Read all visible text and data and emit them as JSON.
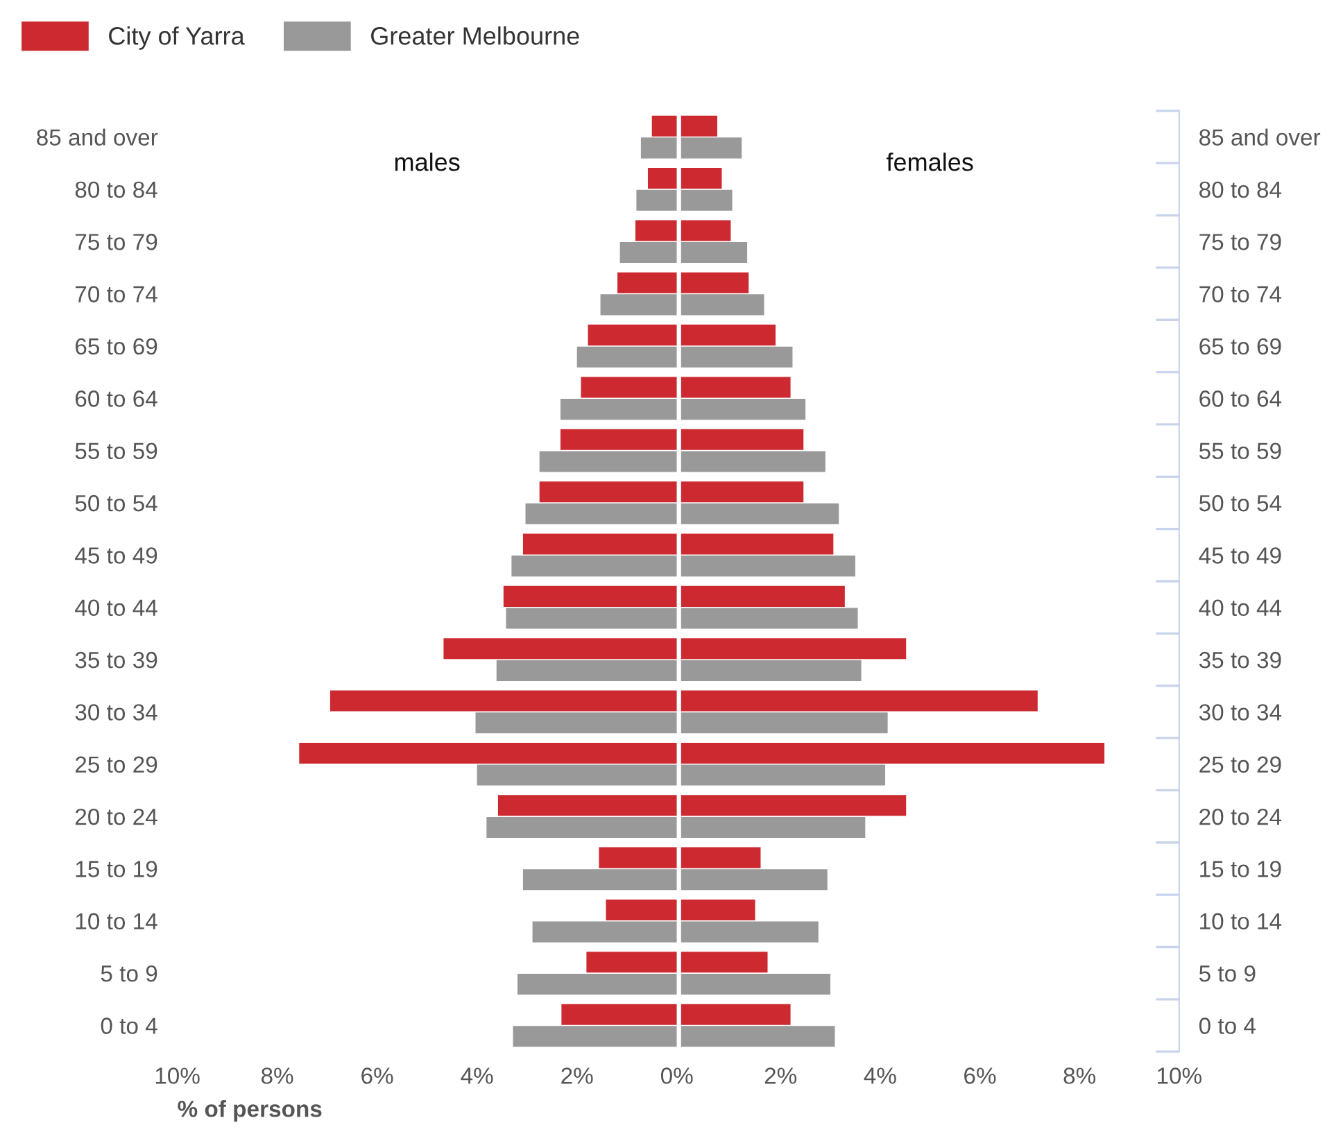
{
  "chart_data": [
    {
      "type": "bar",
      "orientation": "horizontal",
      "title": "males",
      "xlabel": "% of persons",
      "legend": "top left",
      "categories": [
        "85 and over",
        "80 to 84",
        "75 to 79",
        "70 to 74",
        "65 to 69",
        "60 to 64",
        "55 to 59",
        "50 to 54",
        "45 to 49",
        "40 to 44",
        "35 to 39",
        "30 to 34",
        "25 to 29",
        "20 to 24",
        "15 to 19",
        "10 to 14",
        "5 to 9",
        "0 to 4"
      ],
      "series": [
        {
          "name": "City of Yarra",
          "color": "#cc2a30",
          "values": [
            0.5,
            0.58,
            0.83,
            1.19,
            1.78,
            1.92,
            2.33,
            2.75,
            3.08,
            3.47,
            4.67,
            6.94,
            7.56,
            3.58,
            1.56,
            1.42,
            1.81,
            2.31
          ]
        },
        {
          "name": "Greater Melbourne",
          "color": "#999999",
          "values": [
            0.72,
            0.81,
            1.14,
            1.53,
            2.0,
            2.33,
            2.75,
            3.03,
            3.31,
            3.42,
            3.61,
            4.03,
            4.0,
            3.81,
            3.08,
            2.89,
            3.19,
            3.28
          ]
        }
      ],
      "xlim": [
        10,
        0
      ],
      "xticks": [
        {
          "value": 10,
          "label": "10%"
        },
        {
          "value": 8,
          "label": "8%"
        },
        {
          "value": 6,
          "label": "6%"
        },
        {
          "value": 4,
          "label": "4%"
        },
        {
          "value": 2,
          "label": "2%"
        },
        {
          "value": 0,
          "label": "0%"
        }
      ],
      "grid": false
    },
    {
      "type": "bar",
      "orientation": "horizontal",
      "title": "females",
      "categories": [
        "85 and over",
        "80 to 84",
        "75 to 79",
        "70 to 74",
        "65 to 69",
        "60 to 64",
        "55 to 59",
        "50 to 54",
        "45 to 49",
        "40 to 44",
        "35 to 39",
        "30 to 34",
        "25 to 29",
        "20 to 24",
        "15 to 19",
        "10 to 14",
        "5 to 9",
        "0 to 4"
      ],
      "series": [
        {
          "color": "#cc2a30",
          "values": [
            0.73,
            0.82,
            1.0,
            1.36,
            1.9,
            2.2,
            2.46,
            2.46,
            3.06,
            3.29,
            4.52,
            7.16,
            8.5,
            4.52,
            1.6,
            1.49,
            1.74,
            2.2
          ]
        },
        {
          "color": "#999999",
          "values": [
            1.22,
            1.03,
            1.33,
            1.67,
            2.24,
            2.5,
            2.9,
            3.17,
            3.5,
            3.55,
            3.62,
            4.15,
            4.1,
            3.7,
            2.94,
            2.76,
            3.0,
            3.09
          ]
        }
      ],
      "xlim": [
        0,
        10
      ],
      "xticks": [
        {
          "value": 2,
          "label": "2%"
        },
        {
          "value": 4,
          "label": "4%"
        },
        {
          "value": 6,
          "label": "6%"
        },
        {
          "value": 8,
          "label": "8%"
        },
        {
          "value": 10,
          "label": "10%"
        }
      ],
      "grid": false
    }
  ]
}
